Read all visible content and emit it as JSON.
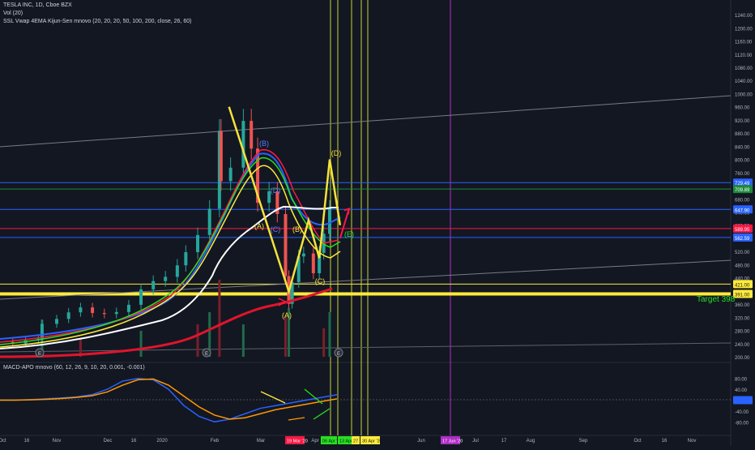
{
  "header": {
    "symbol_line": "TESLA INC, 1D, Cboe BZX",
    "vol_line": "Vol (20)",
    "indicator_line": "SSL Vwap 4EMA Kijun-Sen mnovo (20, 20, 20, 50, 100, 200, close, 26, 60)",
    "macd_line": "MACD-APO mnovo (60, 12, 26, 9, 10, 20, 0.001, -0.001)"
  },
  "colors": {
    "background": "#131722",
    "price_axis_text": "#b2b5be",
    "fib_blue": "#2962ff",
    "fib_red": "#ff1744",
    "target_yellow": "#ffeb3b",
    "wave_yellow": "#f5e33a",
    "wave_red": "#ff1744",
    "label_green": "#26e01f",
    "vertical_yellow": "#c6d33a",
    "vertical_magenta": "#b02ec6"
  },
  "annotations": {
    "target": "Target 398",
    "waves": [
      {
        "label": "(A)",
        "color": "#f5e33a"
      },
      {
        "label": "(B)",
        "color": "#5b7cff"
      },
      {
        "label": "(C)",
        "color": "#5b7cff"
      },
      {
        "label": "(D)",
        "color": "#5b7cff"
      },
      {
        "label": "(A)",
        "color": "#f5e33a"
      },
      {
        "label": "(B)",
        "color": "#f5e33a"
      },
      {
        "label": "(C)",
        "color": "#f5e33a"
      },
      {
        "label": "(D)",
        "color": "#f5e33a"
      },
      {
        "label": "(E)",
        "color": "#26e01f"
      }
    ]
  },
  "markers": [
    "E",
    "E",
    "E"
  ],
  "chart_data": [
    {
      "type": "line",
      "title": "TESLA INC, 1D, Cboe BZX",
      "x_axis_labels": [
        "Oct",
        "16",
        "Nov",
        "Dec",
        "16",
        "2020",
        "Feb",
        "Mar",
        "Apr",
        "Jun",
        "Jul",
        "17",
        "Aug",
        "Sep",
        "Oct",
        "16",
        "Nov"
      ],
      "x_axis_badges": [
        {
          "label": "19 Mar '20",
          "color": "#ff1744",
          "text_color": "#ffffff"
        },
        {
          "label": "06 Apr '20",
          "color": "#26e01f",
          "text_color": "#131722"
        },
        {
          "label": "13 Apr '20",
          "color": "#26e01f",
          "text_color": "#131722"
        },
        {
          "label": "27",
          "color": "#ffeb3b",
          "text_color": "#131722"
        },
        {
          "label": "30 Apr '20",
          "color": "#ffeb3b",
          "text_color": "#131722"
        },
        {
          "label": "17 Jun '20",
          "color": "#b02ec6",
          "text_color": "#ffffff"
        }
      ],
      "y_axis_ticks": [
        1240,
        1200,
        1160,
        1120,
        1080,
        1040,
        1000,
        960,
        920,
        880,
        840,
        800,
        760,
        720,
        680,
        640,
        600,
        560,
        520,
        480,
        440,
        400,
        360,
        320,
        280,
        240,
        200
      ],
      "ylim": [
        200,
        1260
      ],
      "price_labels": [
        {
          "label": "729.49",
          "value": 729.49,
          "color": "#2962ff"
        },
        {
          "label": "709.89",
          "value": 709.89,
          "color": "#1b8a3a"
        },
        {
          "label": "647.90",
          "value": 647.9,
          "color": "#2962ff"
        },
        {
          "label": "589.95",
          "value": 589.95,
          "color": "#ff1744"
        },
        {
          "label": "562.59",
          "value": 562.59,
          "color": "#2962ff"
        },
        {
          "label": "421.00",
          "value": 421.0,
          "color": "#ffeb3b"
        },
        {
          "label": "391.00",
          "value": 391.0,
          "color": "#ffeb3b"
        }
      ],
      "close_series": [
        [
          "Oct 1",
          245
        ],
        [
          "Oct 8",
          240
        ],
        [
          "Oct 15",
          250
        ],
        [
          "Oct 22",
          255
        ],
        [
          "Oct 24",
          300
        ],
        [
          "Nov 1",
          315
        ],
        [
          "Nov 8",
          335
        ],
        [
          "Nov 15",
          350
        ],
        [
          "Nov 22",
          333
        ],
        [
          "Nov 29",
          330
        ],
        [
          "Dec 6",
          336
        ],
        [
          "Dec 13",
          358
        ],
        [
          "Dec 20",
          405
        ],
        [
          "Dec 27",
          430
        ],
        [
          "Jan 3",
          443
        ],
        [
          "Jan 10",
          478
        ],
        [
          "Jan 15",
          518
        ],
        [
          "Jan 22",
          570
        ],
        [
          "Jan 29",
          650
        ],
        [
          "Feb 4",
          887
        ],
        [
          "Feb 5",
          734
        ],
        [
          "Feb 11",
          775
        ],
        [
          "Feb 19",
          917
        ],
        [
          "Feb 24",
          833
        ],
        [
          "Feb 28",
          668
        ],
        [
          "Mar 6",
          703
        ],
        [
          "Mar 11",
          634
        ],
        [
          "Mar 16",
          445
        ],
        [
          "Mar 18",
          361
        ],
        [
          "Mar 20",
          427
        ],
        [
          "Mar 24",
          505
        ],
        [
          "Mar 27",
          514
        ],
        [
          "Apr 2",
          454
        ],
        [
          "Apr 6",
          516
        ],
        [
          "Apr 9",
          574
        ],
        [
          "Apr 13",
          650
        ]
      ],
      "volume_bars": [
        [
          "Oct 24",
          46
        ],
        [
          "Nov 15",
          22
        ],
        [
          "Dec 20",
          32
        ],
        [
          "Jan 22",
          40
        ],
        [
          "Jan 29",
          55
        ],
        [
          "Feb 4",
          95
        ],
        [
          "Feb 19",
          40
        ],
        [
          "Mar 16",
          50
        ],
        [
          "Mar 18",
          60
        ],
        [
          "Apr 9",
          35
        ],
        [
          "Apr 13",
          55
        ]
      ],
      "projections": {
        "yellow_wave": [
          [
            "Feb 10",
            960
          ],
          [
            "Mar 18",
            398
          ],
          [
            "Mar 30",
            615
          ],
          [
            "Apr 6",
            500
          ],
          [
            "Apr 13",
            800
          ],
          [
            "Apr 20",
            600
          ]
        ],
        "red_projection": [
          [
            "Apr 20",
            560
          ],
          [
            "Apr 26",
            650
          ]
        ]
      }
    },
    {
      "type": "line",
      "title": "MACD-APO mnovo (60, 12, 26, 9, 10, 20, 0.001, -0.001)",
      "y_axis_ticks": [
        80.0,
        40.0,
        0.0,
        -40.0,
        -80.0
      ],
      "ylim": [
        -100,
        100
      ],
      "series": [
        {
          "values": [
            0,
            0,
            2,
            5,
            8,
            12,
            20,
            40,
            70,
            80,
            75,
            40,
            -20,
            -60,
            -80,
            -70,
            -50,
            -30,
            -20,
            -10,
            0,
            10,
            20
          ]
        },
        {
          "values": [
            0,
            0,
            1,
            3,
            6,
            10,
            16,
            30,
            55,
            75,
            78,
            55,
            15,
            -25,
            -55,
            -70,
            -65,
            -50,
            -35,
            -25,
            -15,
            -5,
            5
          ]
        }
      ]
    }
  ]
}
